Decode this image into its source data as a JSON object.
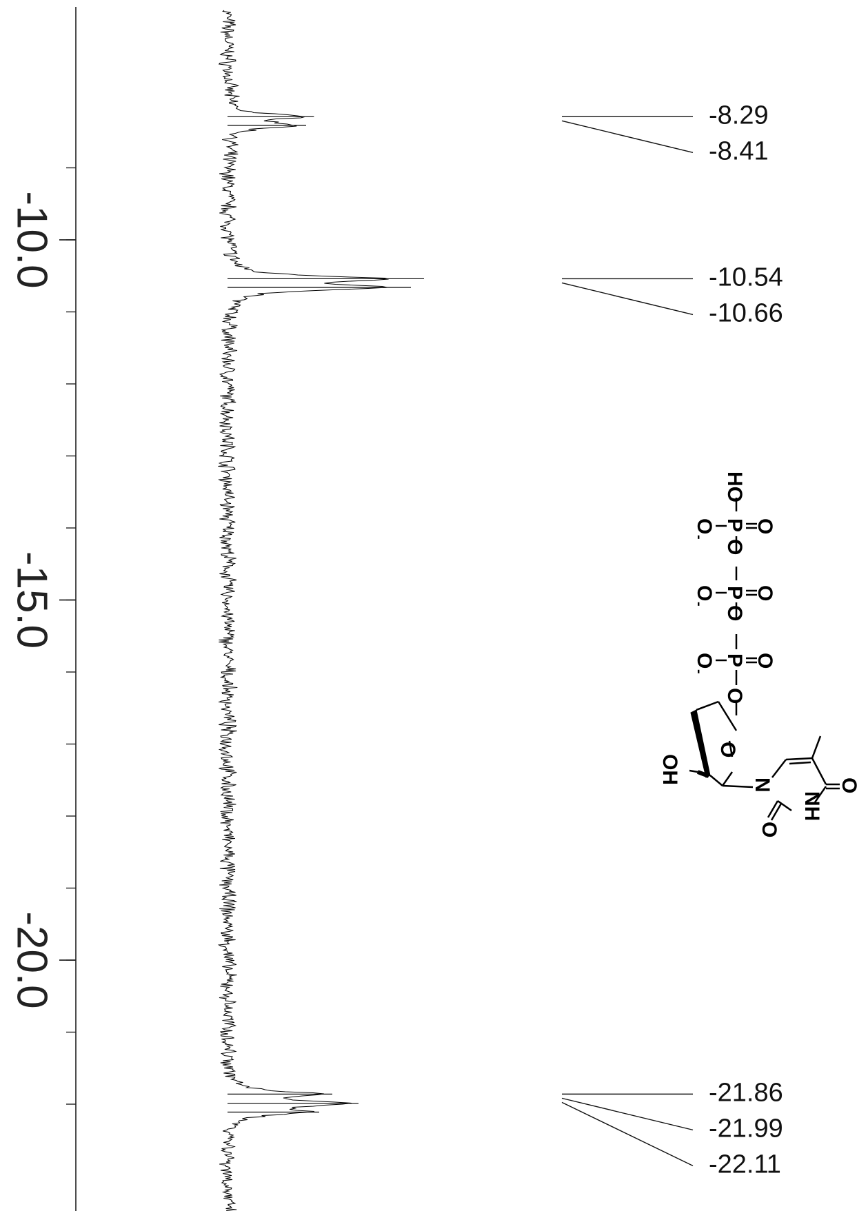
{
  "chart_data": {
    "type": "line",
    "title": "",
    "xlabel": "",
    "ylabel": "",
    "axis_orientation": "vertical",
    "axis_range": [
      -22.6,
      -8.6
    ],
    "axis_ticks": [
      -10.0,
      -15.0,
      -20.0
    ],
    "axis_tick_labels": [
      "-10.0",
      "-15.0",
      "-20.0"
    ],
    "grid": false,
    "peaks": [
      {
        "ppm": -8.29,
        "label": "-8.29",
        "intensity": 0.33
      },
      {
        "ppm": -8.41,
        "label": "-8.41",
        "intensity": 0.3
      },
      {
        "ppm": -10.54,
        "label": "-10.54",
        "intensity": 0.75
      },
      {
        "ppm": -10.66,
        "label": "-10.66",
        "intensity": 0.7
      },
      {
        "ppm": -21.86,
        "label": "-21.86",
        "intensity": 0.4
      },
      {
        "ppm": -21.99,
        "label": "-21.99",
        "intensity": 0.5
      },
      {
        "ppm": -22.11,
        "label": "-22.11",
        "intensity": 0.35
      }
    ]
  },
  "structure": {
    "labels": {
      "ho_top": "HO",
      "p": "P",
      "o": "O",
      "o_minus": "O",
      "minus": "-",
      "oh": "OH",
      "n": "N",
      "nh": "NH"
    }
  }
}
